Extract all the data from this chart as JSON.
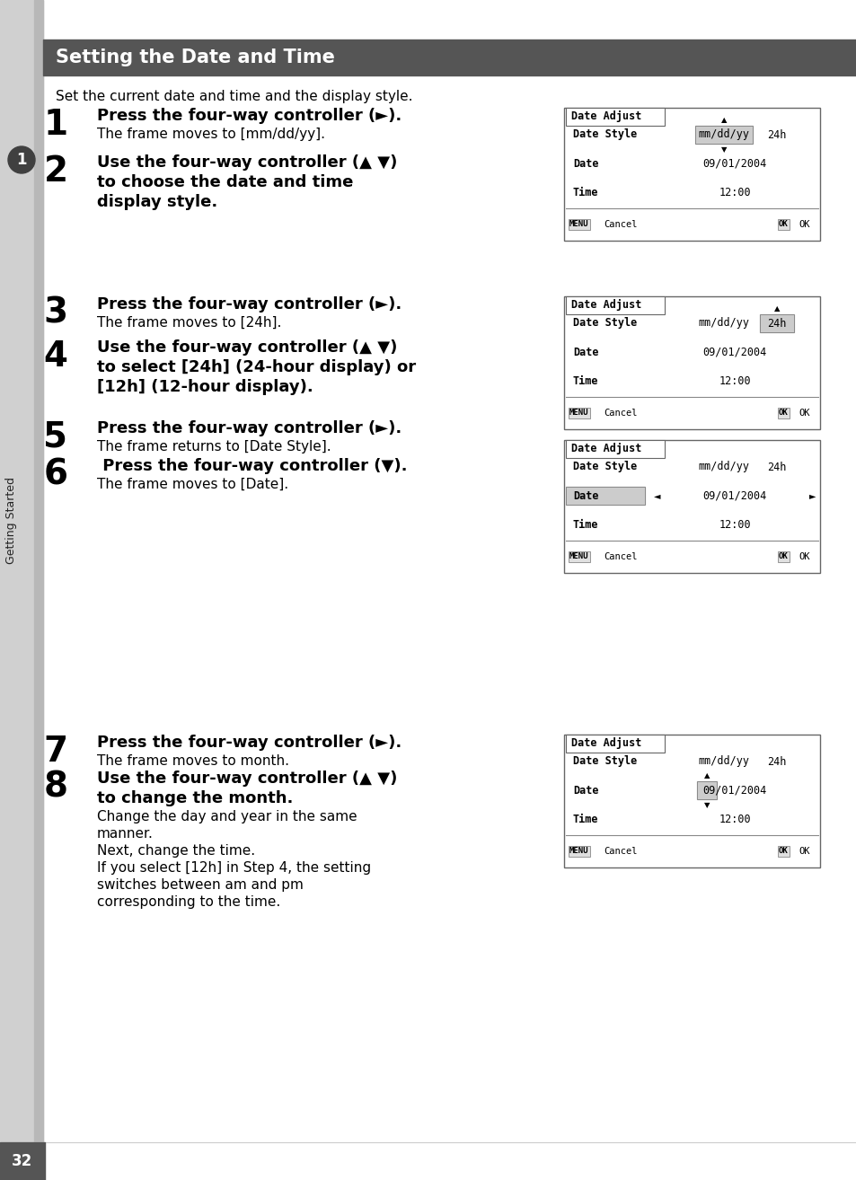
{
  "title": "Setting the Date and Time",
  "title_bg": "#555555",
  "title_color": "#ffffff",
  "page_bg": "#ffffff",
  "sidebar_bg": "#d0d0d0",
  "sidebar_label": "Getting Started",
  "intro_text": "Set the current date and time and the display style.",
  "steps": [
    {
      "number": "1",
      "bold_text": "Press the four-way controller (►).",
      "normal_text": "The frame moves to [mm/dd/yy].",
      "screen": 1
    },
    {
      "number": "2",
      "bold_text": "Use the four-way controller (▲ ▼)\nto choose the date and time\ndisplay style.",
      "normal_text": "",
      "screen": null
    },
    {
      "number": "3",
      "bold_text": "Press the four-way controller (►).",
      "normal_text": "The frame moves to [24h].",
      "screen": 2
    },
    {
      "number": "4",
      "bold_text": "Use the four-way controller (▲ ▼)\nto select [24h] (24-hour display) or\n[12h] (12-hour display).",
      "normal_text": "",
      "screen": null
    },
    {
      "number": "5",
      "bold_text": "Press the four-way controller (►).",
      "normal_text": "The frame returns to [Date Style].",
      "screen": null
    },
    {
      "number": "6",
      "bold_text": " Press the four-way controller (▼).",
      "normal_text": "The frame moves to [Date].",
      "screen": 3
    },
    {
      "number": "7",
      "bold_text": "Press the four-way controller (►).",
      "normal_text": "The frame moves to month.",
      "screen": 4
    },
    {
      "number": "8",
      "bold_text": "Use the four-way controller (▲ ▼)\nto change the month.",
      "normal_text": "Change the day and year in the same\nmanner.\nNext, change the time.\nIf you select [12h] in Step 4, the setting\nswitches between am and pm\ncorresponding to the time.",
      "screen": null
    }
  ],
  "screens": [
    {
      "id": 1,
      "date_style_val": "mm/dd/yy",
      "date_style_highlight": true,
      "date_style_24h_highlight": false,
      "date_val": "09/01/2004",
      "time_val": "12:00",
      "arrow_on_mmddyy_up": true,
      "arrow_on_mmddyy_down": true,
      "arrow_on_24h_up": false,
      "date_highlight": false,
      "date_left_arrow": false,
      "date_right_arrow": false,
      "date_month_highlight": false,
      "date_month_up": false,
      "date_month_down": false
    },
    {
      "id": 2,
      "date_style_val": "mm/dd/yy",
      "date_style_highlight": false,
      "date_style_24h_highlight": true,
      "date_val": "09/01/2004",
      "time_val": "12:00",
      "arrow_on_mmddyy_up": false,
      "arrow_on_mmddyy_down": false,
      "arrow_on_24h_up": true,
      "date_highlight": false,
      "date_left_arrow": false,
      "date_right_arrow": false,
      "date_month_highlight": false,
      "date_month_up": false,
      "date_month_down": false
    },
    {
      "id": 3,
      "date_style_val": "mm/dd/yy",
      "date_style_highlight": false,
      "date_style_24h_highlight": false,
      "date_val": "09/01/2004",
      "time_val": "12:00",
      "arrow_on_mmddyy_up": false,
      "arrow_on_mmddyy_down": false,
      "arrow_on_24h_up": false,
      "date_highlight": true,
      "date_left_arrow": true,
      "date_right_arrow": true,
      "date_month_highlight": false,
      "date_month_up": false,
      "date_month_down": false
    },
    {
      "id": 4,
      "date_style_val": "mm/dd/yy",
      "date_style_highlight": false,
      "date_style_24h_highlight": false,
      "date_val": "09/01/2004",
      "time_val": "12:00",
      "arrow_on_mmddyy_up": false,
      "arrow_on_mmddyy_down": false,
      "arrow_on_24h_up": false,
      "date_highlight": false,
      "date_left_arrow": false,
      "date_right_arrow": false,
      "date_month_highlight": true,
      "date_month_up": true,
      "date_month_down": true
    }
  ],
  "footer_page": "32"
}
